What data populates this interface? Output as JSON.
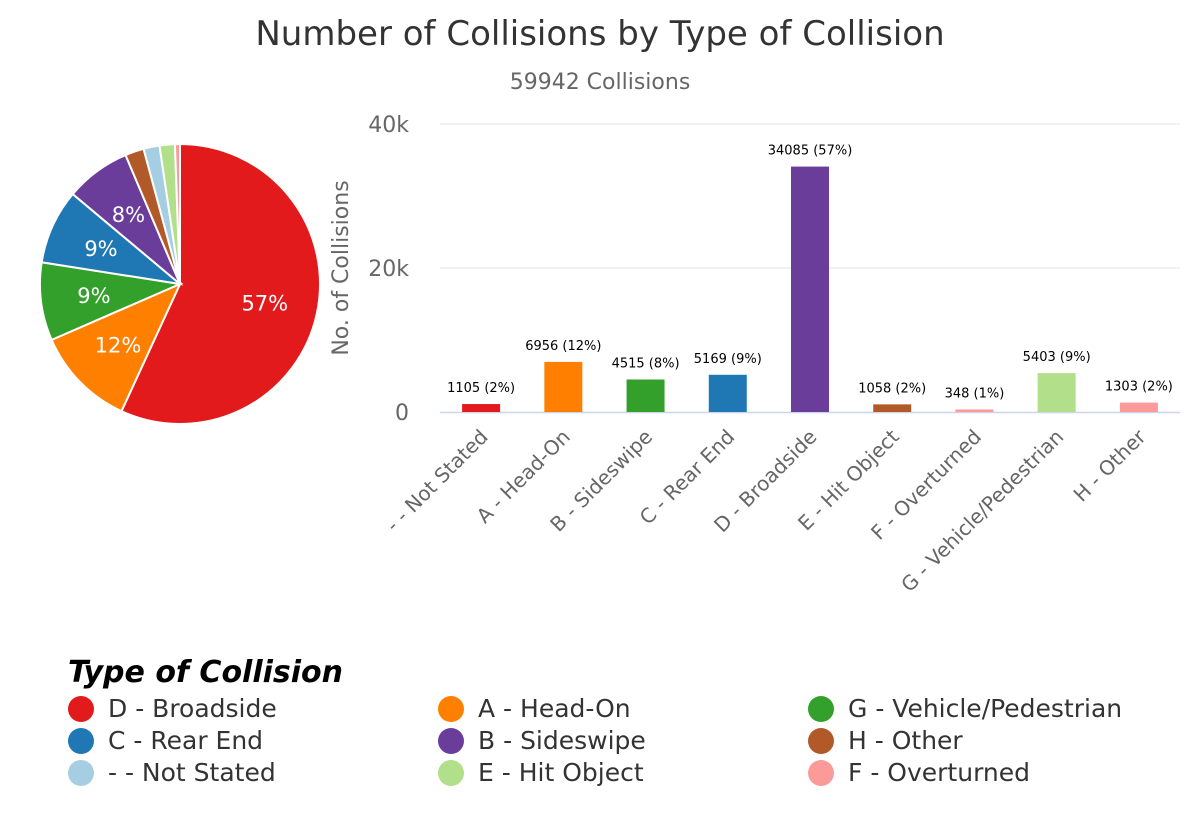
{
  "chart_title": "Number of Collisions by Type of Collision",
  "chart_subtitle": "59942 Collisions",
  "legend": {
    "title": "Type of Collision",
    "items": [
      {
        "label": "D - Broadside",
        "color": "#e31a1c"
      },
      {
        "label": "A - Head-On",
        "color": "#ff7f00"
      },
      {
        "label": "G - Vehicle/Pedestrian",
        "color": "#33a02c"
      },
      {
        "label": "C - Rear End",
        "color": "#1f78b4"
      },
      {
        "label": "B - Sideswipe",
        "color": "#6a3d9a"
      },
      {
        "label": "H - Other",
        "color": "#b15928"
      },
      {
        "label": "- - Not Stated",
        "color": "#a6cee3"
      },
      {
        "label": "E - Hit Object",
        "color": "#b2df8a"
      },
      {
        "label": "F - Overturned",
        "color": "#fb9a99"
      }
    ]
  },
  "chart_data": [
    {
      "type": "pie",
      "slices": [
        {
          "label": "D - Broadside",
          "value": 34085,
          "percent_label": "57%",
          "color": "#e31a1c"
        },
        {
          "label": "A - Head-On",
          "value": 6956,
          "percent_label": "12%",
          "color": "#ff7f00"
        },
        {
          "label": "G - Vehicle/Pedestrian",
          "value": 5403,
          "percent_label": "9%",
          "color": "#33a02c"
        },
        {
          "label": "C - Rear End",
          "value": 5169,
          "percent_label": "9%",
          "color": "#1f78b4"
        },
        {
          "label": "B - Sideswipe",
          "value": 4515,
          "percent_label": "8%",
          "color": "#6a3d9a"
        },
        {
          "label": "H - Other",
          "value": 1303,
          "percent_label": "",
          "color": "#b15928"
        },
        {
          "label": "- - Not Stated",
          "value": 1105,
          "percent_label": "",
          "color": "#a6cee3"
        },
        {
          "label": "E - Hit Object",
          "value": 1058,
          "percent_label": "",
          "color": "#b2df8a"
        },
        {
          "label": "F - Overturned",
          "value": 348,
          "percent_label": "",
          "color": "#fb9a99"
        }
      ]
    },
    {
      "type": "bar",
      "ylabel": "No. of Collisions",
      "ylim": [
        0,
        40000
      ],
      "yticks": [
        {
          "value": 0,
          "label": "0"
        },
        {
          "value": 20000,
          "label": "20k"
        },
        {
          "value": 40000,
          "label": "40k"
        }
      ],
      "grid": true,
      "categories": [
        "- - Not Stated",
        "A - Head-On",
        "B - Sideswipe",
        "C - Rear End",
        "D - Broadside",
        "E - Hit Object",
        "F - Overturned",
        "G - Vehicle/Pedestrian",
        "H - Other"
      ],
      "values": [
        1105,
        6956,
        4515,
        5169,
        34085,
        1058,
        348,
        5403,
        1303
      ],
      "data_labels": [
        "1105 (2%)",
        "6956 (12%)",
        "4515 (8%)",
        "5169 (9%)",
        "34085 (57%)",
        "1058 (2%)",
        "348 (1%)",
        "5403 (9%)",
        "1303 (2%)"
      ],
      "colors": [
        "#e31a1c",
        "#ff7f00",
        "#33a02c",
        "#1f78b4",
        "#6a3d9a",
        "#b15928",
        "#fb9a99",
        "#b2df8a",
        "#fb9a99"
      ]
    }
  ]
}
